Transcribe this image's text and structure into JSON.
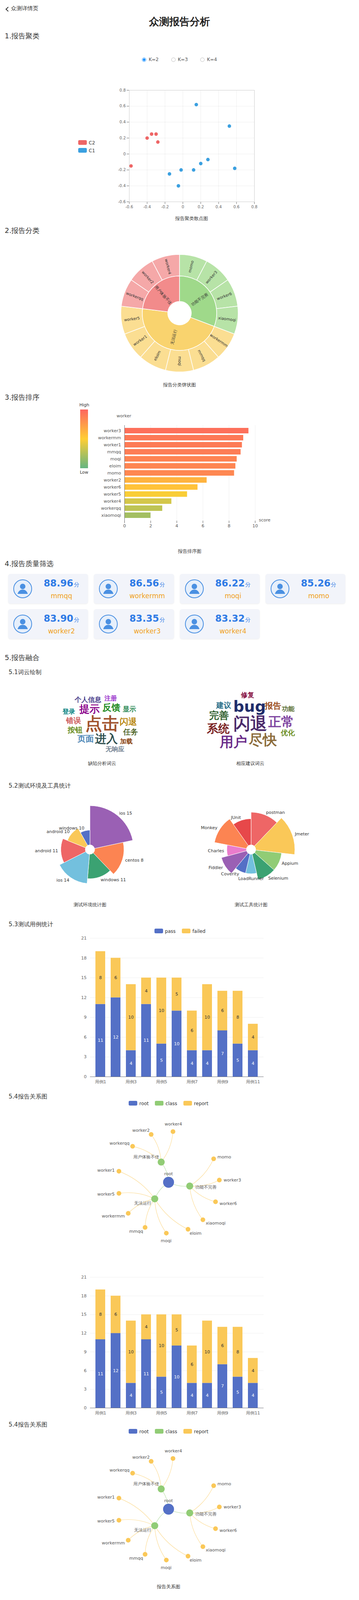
{
  "header": {
    "back": "众测详情页",
    "title": "众测报告分析"
  },
  "chart_data": [
    {
      "type": "scatter",
      "heading": "1.报告聚类",
      "options": [
        "K=2",
        "K=3",
        "K=4"
      ],
      "selected": "K=2",
      "caption": "报告聚类散点图",
      "series": [
        {
          "name": "C2",
          "color": "#ee6666",
          "x": [
            -0.4,
            -0.35,
            -0.3,
            -0.28,
            -0.58
          ],
          "y": [
            0.2,
            0.25,
            0.25,
            0.15,
            -0.15
          ]
        },
        {
          "name": "C1",
          "color": "#3ba0e0",
          "x": [
            0.15,
            0.52,
            0.58,
            0.28,
            0.2,
            0.12,
            -0.02,
            -0.15,
            -0.05
          ],
          "y": [
            0.62,
            0.35,
            -0.18,
            -0.07,
            -0.12,
            -0.2,
            -0.2,
            -0.25,
            -0.4
          ]
        }
      ],
      "xlim": [
        -0.6,
        0.8
      ],
      "ylim": [
        -0.6,
        0.8
      ],
      "xticks": [
        -0.6,
        -0.4,
        -0.2,
        0,
        0.2,
        0.4,
        0.6,
        0.8
      ],
      "yticks": [
        -0.6,
        -0.4,
        -0.2,
        0,
        0.2,
        0.4,
        0.6,
        0.8
      ],
      "grid": true,
      "legend": "left"
    },
    {
      "type": "sunburst",
      "heading": "2.报告分类",
      "caption": "报告分类饼状图",
      "groups": [
        {
          "name": "功能不完善",
          "color": "#9fd98a",
          "children": [
            {
              "name": "momo",
              "value": 1
            },
            {
              "name": "worker3",
              "value": 1
            },
            {
              "name": "worker6",
              "value": 1
            },
            {
              "name": "xiaomoqi",
              "value": 1
            }
          ]
        },
        {
          "name": "无法运行",
          "color": "#f9d36e",
          "children": [
            {
              "name": "workermm",
              "value": 1
            },
            {
              "name": "mmqq",
              "value": 1
            },
            {
              "name": "moqi",
              "value": 1
            },
            {
              "name": "eloim",
              "value": 1
            },
            {
              "name": "worker1",
              "value": 1
            },
            {
              "name": "worker5",
              "value": 1
            }
          ]
        },
        {
          "name": "用户体验不佳",
          "color": "#f28b8b",
          "children": [
            {
              "name": "workerqq",
              "value": 1
            },
            {
              "name": "worker2",
              "value": 1
            },
            {
              "name": "worker4",
              "value": 1
            }
          ]
        }
      ]
    },
    {
      "type": "bar",
      "orientation": "horizontal",
      "heading": "3.报告排序",
      "caption": "报告排序图",
      "y_label": "worker",
      "x_label": "score",
      "categories": [
        "worker3",
        "workermm",
        "worker1",
        "mmqq",
        "moqi",
        "eloim",
        "momo",
        "worker2",
        "worker6",
        "worker5",
        "worker4",
        "workerqq",
        "xiaomoqi"
      ],
      "values": [
        9.5,
        9.1,
        9.0,
        8.9,
        8.6,
        8.5,
        8.4,
        6.3,
        5.6,
        4.8,
        3.6,
        2.9,
        2.0
      ],
      "xlim": [
        0,
        10
      ],
      "xticks": [
        0,
        2,
        4,
        6,
        8,
        10
      ],
      "grid": true,
      "colorbar": {
        "min": 0,
        "max": 10,
        "low": "Low",
        "high": "High",
        "colors": [
          "#65b581",
          "#ffce34",
          "#fd665f"
        ]
      }
    },
    {
      "type": "cards",
      "heading": "4.报告质量筛选",
      "cards": [
        {
          "name": "mmqq",
          "score": "88.96",
          "unit": "分"
        },
        {
          "name": "workermm",
          "score": "86.56",
          "unit": "分"
        },
        {
          "name": "moqi",
          "score": "86.22",
          "unit": "分"
        },
        {
          "name": "momo",
          "score": "85.26",
          "unit": "分"
        },
        {
          "name": "worker2",
          "score": "83.90",
          "unit": "分"
        },
        {
          "name": "worker3",
          "score": "83.35",
          "unit": "分"
        },
        {
          "name": "worker4",
          "score": "83.32",
          "unit": "分"
        }
      ]
    },
    {
      "type": "wordcloud",
      "heading": "5.报告融合",
      "subheading": "5.1词云绘制",
      "panels": [
        {
          "caption": "缺陷分析词云",
          "words": [
            {
              "text": "点击",
              "weight": 50,
              "color": "#a0522d"
            },
            {
              "text": "进入",
              "weight": 30,
              "color": "#2f4f4f"
            },
            {
              "text": "提示",
              "weight": 26,
              "color": "#8b008b"
            },
            {
              "text": "反馈",
              "weight": 22,
              "color": "#228b22"
            },
            {
              "text": "闪退",
              "weight": 20,
              "color": "#b8860b"
            },
            {
              "text": "页面",
              "weight": 18,
              "color": "#4682b4"
            },
            {
              "text": "按钮",
              "weight": 16,
              "color": "#6b8e23"
            },
            {
              "text": "错误",
              "weight": 16,
              "color": "#cd5c5c"
            },
            {
              "text": "任务",
              "weight": 15,
              "color": "#556b2f"
            },
            {
              "text": "个人信息",
              "weight": 13,
              "color": "#483d8b"
            },
            {
              "text": "显示",
              "weight": 13,
              "color": "#2e8b57"
            },
            {
              "text": "加载",
              "weight": 12,
              "color": "#8b4513"
            },
            {
              "text": "登录",
              "weight": 12,
              "color": "#008080"
            },
            {
              "text": "注册",
              "weight": 11,
              "color": "#9932cc"
            },
            {
              "text": "无响应",
              "weight": 11,
              "color": "#708090"
            }
          ]
        },
        {
          "caption": "相应建议词云",
          "words": [
            {
              "text": "闪退",
              "weight": 50,
              "color": "#4b2a6b"
            },
            {
              "text": "bug",
              "weight": 44,
              "color": "#1f2d6b"
            },
            {
              "text": "尽快",
              "weight": 40,
              "color": "#8b6b3a"
            },
            {
              "text": "用户",
              "weight": 38,
              "color": "#6a2c8a"
            },
            {
              "text": "正常",
              "weight": 36,
              "color": "#7b3f9e"
            },
            {
              "text": "系统",
              "weight": 30,
              "color": "#7a1f1f"
            },
            {
              "text": "完善",
              "weight": 24,
              "color": "#2e5e2e"
            },
            {
              "text": "报告",
              "weight": 18,
              "color": "#9a4a1a"
            },
            {
              "text": "建议",
              "weight": 16,
              "color": "#2a6f8a"
            },
            {
              "text": "优化",
              "weight": 14,
              "color": "#6b8e23"
            },
            {
              "text": "修复",
              "weight": 13,
              "color": "#8b1a4a"
            },
            {
              "text": "功能",
              "weight": 12,
              "color": "#556b2f"
            }
          ]
        }
      ]
    },
    {
      "type": "rose",
      "subheading": "5.2测试环境及工具统计",
      "panels": [
        {
          "caption": "测试环境统计图",
          "categories": [
            "ios 15",
            "centos 8",
            "windows 11",
            "ios 14",
            "android 11",
            "android 10",
            "windows 10"
          ],
          "values": [
            8,
            6,
            5,
            6,
            5,
            4,
            3
          ],
          "colors": [
            "#9a60b4",
            "#fc8452",
            "#3ba272",
            "#73c0de",
            "#ee6666",
            "#fac858",
            "#5470c6"
          ]
        },
        {
          "caption": "测试工具统计图",
          "categories": [
            "postman",
            "Jmeter",
            "Appium",
            "Selenium",
            "LoadRunner",
            "Coverity",
            "Fiddler",
            "Charles",
            "Monkey",
            "JUnit"
          ],
          "values": [
            5,
            6,
            4,
            4,
            3,
            3,
            4,
            3,
            5,
            4
          ],
          "colors": [
            "#ee6666",
            "#fac858",
            "#91cc75",
            "#3ba272",
            "#73c0de",
            "#5470c6",
            "#9a60b4",
            "#ea7ccc",
            "#fc8452",
            "#e7484a"
          ]
        }
      ]
    },
    {
      "type": "bar",
      "stacked": true,
      "data_labels": true,
      "subheading": "5.3测试用例统计",
      "legend": "top",
      "categories": [
        "用例1",
        null,
        "用例3",
        null,
        "用例5",
        null,
        "用例7",
        null,
        "用例9",
        null,
        "用例11"
      ],
      "series": [
        {
          "name": "pass",
          "color": "#5470c6",
          "values": [
            11,
            12,
            4,
            11,
            5,
            10,
            4,
            4,
            7,
            5,
            4
          ]
        },
        {
          "name": "failed",
          "color": "#fac858",
          "values": [
            8,
            6,
            10,
            4,
            10,
            5,
            6,
            10,
            6,
            8,
            4
          ]
        }
      ],
      "ylim": [
        0,
        21
      ],
      "yticks": [
        0,
        3,
        6,
        9,
        12,
        15,
        18,
        21
      ],
      "grid": true
    },
    {
      "type": "graph",
      "subheading": "5.4报告关系图",
      "legend": "top",
      "node_types": [
        {
          "name": "root",
          "color": "#5470c6"
        },
        {
          "name": "class",
          "color": "#91cc75"
        },
        {
          "name": "report",
          "color": "#fac858"
        }
      ],
      "nodes": [
        {
          "name": "root",
          "type": "root"
        },
        {
          "name": "用户体验不佳",
          "type": "class"
        },
        {
          "name": "功能不完善",
          "type": "class"
        },
        {
          "name": "无法运行",
          "type": "class"
        },
        {
          "name": "workerqq",
          "type": "report"
        },
        {
          "name": "worker2",
          "type": "report"
        },
        {
          "name": "worker4",
          "type": "report"
        },
        {
          "name": "momo",
          "type": "report"
        },
        {
          "name": "worker3",
          "type": "report"
        },
        {
          "name": "worker6",
          "type": "report"
        },
        {
          "name": "xiaomoqi",
          "type": "report"
        },
        {
          "name": "workermm",
          "type": "report"
        },
        {
          "name": "mmqq",
          "type": "report"
        },
        {
          "name": "moqi",
          "type": "report"
        },
        {
          "name": "eloim",
          "type": "report"
        },
        {
          "name": "worker1",
          "type": "report"
        },
        {
          "name": "worker5",
          "type": "report"
        }
      ],
      "links": [
        [
          "root",
          "用户体验不佳"
        ],
        [
          "root",
          "功能不完善"
        ],
        [
          "root",
          "无法运行"
        ],
        [
          "用户体验不佳",
          "workerqq"
        ],
        [
          "用户体验不佳",
          "worker2"
        ],
        [
          "用户体验不佳",
          "worker4"
        ],
        [
          "功能不完善",
          "momo"
        ],
        [
          "功能不完善",
          "worker3"
        ],
        [
          "功能不完善",
          "worker6"
        ],
        [
          "功能不完善",
          "xiaomoqi"
        ],
        [
          "无法运行",
          "eloim"
        ],
        [
          "无法运行",
          "moqi"
        ],
        [
          "无法运行",
          "mmqq"
        ],
        [
          "无法运行",
          "workermm"
        ],
        [
          "无法运行",
          "worker5"
        ],
        [
          "无法运行",
          "worker1"
        ]
      ]
    },
    {
      "type": "bar",
      "stacked": true,
      "data_labels": true,
      "categories": [
        "用例1",
        null,
        "用例3",
        null,
        "用例5",
        null,
        "用例7",
        null,
        "用例9",
        null,
        "用例11"
      ],
      "series": [
        {
          "name": "pass",
          "color": "#5470c6",
          "values": [
            11,
            12,
            4,
            11,
            5,
            10,
            4,
            4,
            7,
            5,
            4
          ]
        },
        {
          "name": "failed",
          "color": "#fac858",
          "values": [
            8,
            6,
            10,
            4,
            10,
            5,
            6,
            10,
            6,
            8,
            4
          ]
        }
      ],
      "ylim": [
        0,
        21
      ],
      "yticks": [
        0,
        3,
        6,
        9,
        12,
        15,
        18,
        21
      ],
      "grid": true
    },
    {
      "type": "graph",
      "subheading": "5.4报告关系图",
      "legend": "top",
      "caption": "报告关系图",
      "node_types": [
        {
          "name": "root",
          "color": "#5470c6"
        },
        {
          "name": "class",
          "color": "#91cc75"
        },
        {
          "name": "report",
          "color": "#fac858"
        }
      ],
      "nodes": [
        {
          "name": "root",
          "type": "root"
        },
        {
          "name": "用户体验不佳",
          "type": "class"
        },
        {
          "name": "功能不完善",
          "type": "class"
        },
        {
          "name": "无法运行",
          "type": "class"
        },
        {
          "name": "workerqq",
          "type": "report"
        },
        {
          "name": "worker2",
          "type": "report"
        },
        {
          "name": "worker4",
          "type": "report"
        },
        {
          "name": "momo",
          "type": "report"
        },
        {
          "name": "worker3",
          "type": "report"
        },
        {
          "name": "worker6",
          "type": "report"
        },
        {
          "name": "xiaomoqi",
          "type": "report"
        },
        {
          "name": "workermm",
          "type": "report"
        },
        {
          "name": "mmqq",
          "type": "report"
        },
        {
          "name": "moqi",
          "type": "report"
        },
        {
          "name": "eloim",
          "type": "report"
        },
        {
          "name": "worker1",
          "type": "report"
        },
        {
          "name": "worker5",
          "type": "report"
        }
      ],
      "links": [
        [
          "root",
          "用户体验不佳"
        ],
        [
          "root",
          "功能不完善"
        ],
        [
          "root",
          "无法运行"
        ],
        [
          "用户体验不佳",
          "workerqq"
        ],
        [
          "用户体验不佳",
          "worker2"
        ],
        [
          "用户体验不佳",
          "worker4"
        ],
        [
          "功能不完善",
          "momo"
        ],
        [
          "功能不完善",
          "worker3"
        ],
        [
          "功能不完善",
          "worker6"
        ],
        [
          "功能不完善",
          "xiaomoqi"
        ],
        [
          "无法运行",
          "eloim"
        ],
        [
          "无法运行",
          "moqi"
        ],
        [
          "无法运行",
          "mmqq"
        ],
        [
          "无法运行",
          "workermm"
        ],
        [
          "无法运行",
          "worker5"
        ],
        [
          "无法运行",
          "worker1"
        ]
      ]
    }
  ]
}
